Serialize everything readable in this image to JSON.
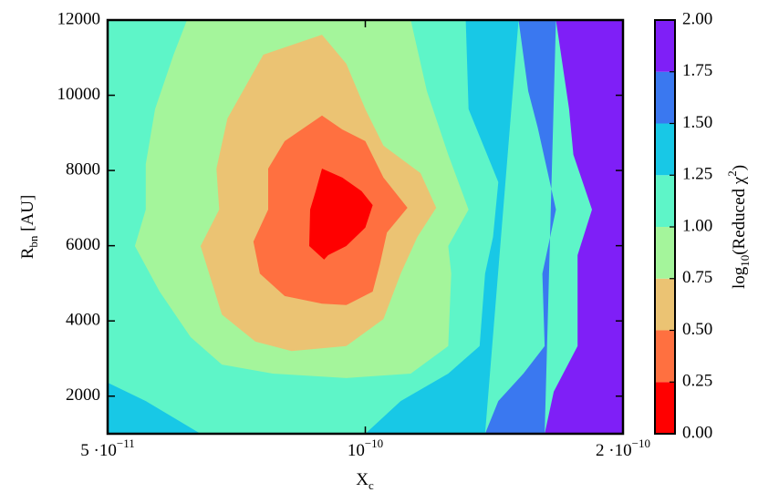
{
  "chart_data": {
    "type": "contour",
    "xlabel": {
      "text": "X",
      "sub": "c"
    },
    "ylabel": {
      "text": "R",
      "sub": "bn",
      "after": " [AU]"
    },
    "xscale": "log",
    "xlim": [
      5e-11,
      2e-10
    ],
    "xticks": [
      {
        "value": 5e-11,
        "label": "5 ·10",
        "sup": "−11"
      },
      {
        "value": 1e-10,
        "label": "10",
        "sup": "−10"
      },
      {
        "value": 2e-10,
        "label": "2 ·10",
        "sup": "−10"
      }
    ],
    "ylim": [
      1000,
      12000
    ],
    "yticks": [
      2000,
      4000,
      6000,
      8000,
      10000,
      12000
    ],
    "colorbar": {
      "label": {
        "before": "log",
        "sub": "10",
        "mid": "(Reduced χ",
        "sup": "2",
        "after": ")"
      },
      "levels": [
        {
          "value": 0,
          "label": "0.00"
        },
        {
          "value": 0.25,
          "label": "0.25"
        },
        {
          "value": 0.5,
          "label": "0.50"
        },
        {
          "value": 0.75,
          "label": "0.75"
        },
        {
          "value": 1.0,
          "label": "1.00"
        },
        {
          "value": 1.25,
          "label": "1.25"
        },
        {
          "value": 1.5,
          "label": "1.50"
        },
        {
          "value": 1.75,
          "label": "1.75"
        },
        {
          "value": 2.0,
          "label": "2.00"
        }
      ],
      "colors": [
        "#ff0000",
        "#ff7040",
        "#ebc373",
        "#a4f59b",
        "#5ef5c8",
        "#18c8e6",
        "#3a78f0",
        "#7f1ff7"
      ]
    },
    "background_level": 1.0,
    "regions": [
      {
        "level": 1.75,
        "x": [
          1.67e-10,
          1.73e-10,
          1.75e-10,
          1.84e-10,
          1.77e-10,
          1.77e-10,
          1.66e-10,
          1.62e-10,
          2e-10,
          2e-10
        ],
        "y": [
          12000,
          9630,
          8420,
          6960,
          5750,
          3330,
          2120,
          1000,
          1000,
          12000
        ]
      },
      {
        "level": 1.5,
        "x": [
          1.51e-10,
          1.55e-10,
          1.59e-10,
          1.67e-10,
          1.61e-10,
          1.62e-10,
          1.53e-10,
          1.43e-10,
          1.38e-10,
          1.62e-10,
          1.67e-10
        ],
        "y": [
          12000,
          10110,
          9140,
          6960,
          5260,
          3330,
          2600,
          1870,
          1000,
          1000,
          12000
        ]
      },
      {
        "level": 1.25,
        "x": [
          1.31e-10,
          1.32e-10,
          1.43e-10,
          1.41e-10,
          1.38e-10,
          1.36e-10,
          1.25e-10,
          1.1e-10,
          1e-10,
          1.38e-10,
          1.51e-10
        ],
        "y": [
          12000,
          9630,
          7690,
          6230,
          5260,
          3330,
          2600,
          1870,
          1000,
          1000,
          12000
        ]
      },
      {
        "level": 1.25,
        "x": [
          5e-11,
          5.54e-11,
          6.42e-11,
          5e-11
        ],
        "y": [
          2360,
          1870,
          1000,
          1000
        ]
      },
      {
        "level": 0.75,
        "x": [
          6.19e-11,
          1.13e-10,
          1.18e-10,
          1.25e-10,
          1.32e-10,
          1.25e-10,
          1.26e-10,
          1.25e-10,
          1.13e-10,
          9.5e-11,
          7.8e-11,
          6.8e-11,
          6.25e-11,
          5.75e-11,
          5.38e-11,
          5.54e-11,
          5.54e-11,
          5.68e-11,
          5.97e-11
        ],
        "y": [
          12000,
          12000,
          10110,
          8420,
          6960,
          5990,
          5260,
          3330,
          2600,
          2480,
          2600,
          2840,
          3570,
          4780,
          5990,
          6960,
          8170,
          9630,
          11080
        ]
      },
      {
        "level": 0.5,
        "x": [
          8.9e-11,
          9.5e-11,
          1e-10,
          1.05e-10,
          1.16e-10,
          1.21e-10,
          1.15e-10,
          1.1e-10,
          1.05e-10,
          9.5e-11,
          8.2e-11,
          7.44e-11,
          6.8e-11,
          6.42e-11,
          6.75e-11,
          6.7e-11,
          6.9e-11,
          7.6e-11
        ],
        "y": [
          11610,
          10840,
          9630,
          8660,
          7930,
          7010,
          6230,
          5260,
          4050,
          3330,
          3200,
          3450,
          4170,
          5990,
          6960,
          8050,
          9380,
          11080
        ]
      },
      {
        "level": 0.25,
        "x": [
          8.9e-11,
          9.4e-11,
          1e-10,
          1.05e-10,
          1.12e-10,
          1.06e-10,
          1.04e-10,
          1.02e-10,
          9.5e-11,
          8.9e-11,
          8.05e-11,
          7.53e-11,
          7.4e-11,
          7.7e-11,
          7.7e-11,
          8.05e-11
        ],
        "y": [
          9460,
          9090,
          8780,
          7810,
          7010,
          6350,
          5510,
          4780,
          4420,
          4460,
          4660,
          5260,
          6110,
          6960,
          8050,
          8780
        ]
      },
      {
        "level": 0,
        "x": [
          8.9e-11,
          9.4e-11,
          9.9e-11,
          1.02e-10,
          1e-10,
          9.5e-11,
          9.05e-11,
          8.95e-11,
          8.6e-11,
          8.62e-11,
          8.75e-11
        ],
        "y": [
          8050,
          7810,
          7450,
          7080,
          6480,
          5990,
          5750,
          5630,
          5990,
          6960,
          7450
        ]
      }
    ]
  }
}
